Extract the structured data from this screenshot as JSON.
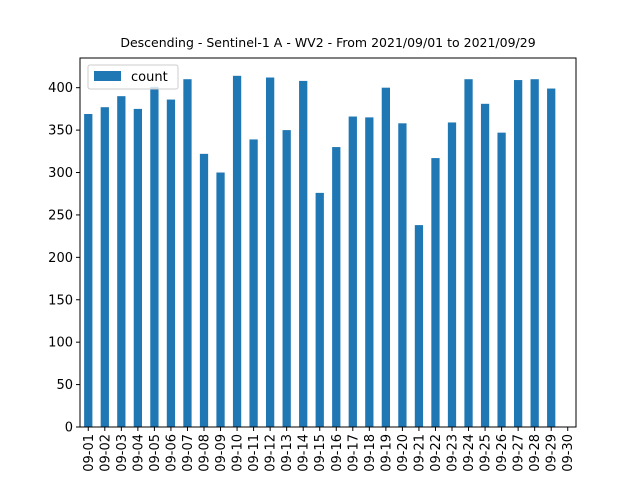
{
  "chart_data": {
    "type": "bar",
    "title": "Descending - Sentinel-1 A - WV2 - From 2021/09/01 to 2021/09/29",
    "xlabel": "",
    "ylabel": "",
    "categories": [
      "09-01",
      "09-02",
      "09-03",
      "09-04",
      "09-05",
      "09-06",
      "09-07",
      "09-08",
      "09-09",
      "09-10",
      "09-11",
      "09-12",
      "09-13",
      "09-14",
      "09-15",
      "09-16",
      "09-17",
      "09-18",
      "09-19",
      "09-20",
      "09-21",
      "09-22",
      "09-23",
      "09-24",
      "09-25",
      "09-26",
      "09-27",
      "09-28",
      "09-29",
      "09-30"
    ],
    "series": [
      {
        "name": "count",
        "color": "#1f77b4",
        "values": [
          369,
          377,
          390,
          375,
          401,
          386,
          410,
          322,
          300,
          414,
          339,
          412,
          350,
          408,
          276,
          330,
          366,
          365,
          400,
          358,
          238,
          317,
          359,
          410,
          381,
          347,
          409,
          410,
          399,
          0
        ]
      }
    ],
    "ylim": [
      0,
      435
    ],
    "yticks": [
      0,
      50,
      100,
      150,
      200,
      250,
      300,
      350,
      400
    ],
    "legend": "top-left",
    "grid": false
  }
}
